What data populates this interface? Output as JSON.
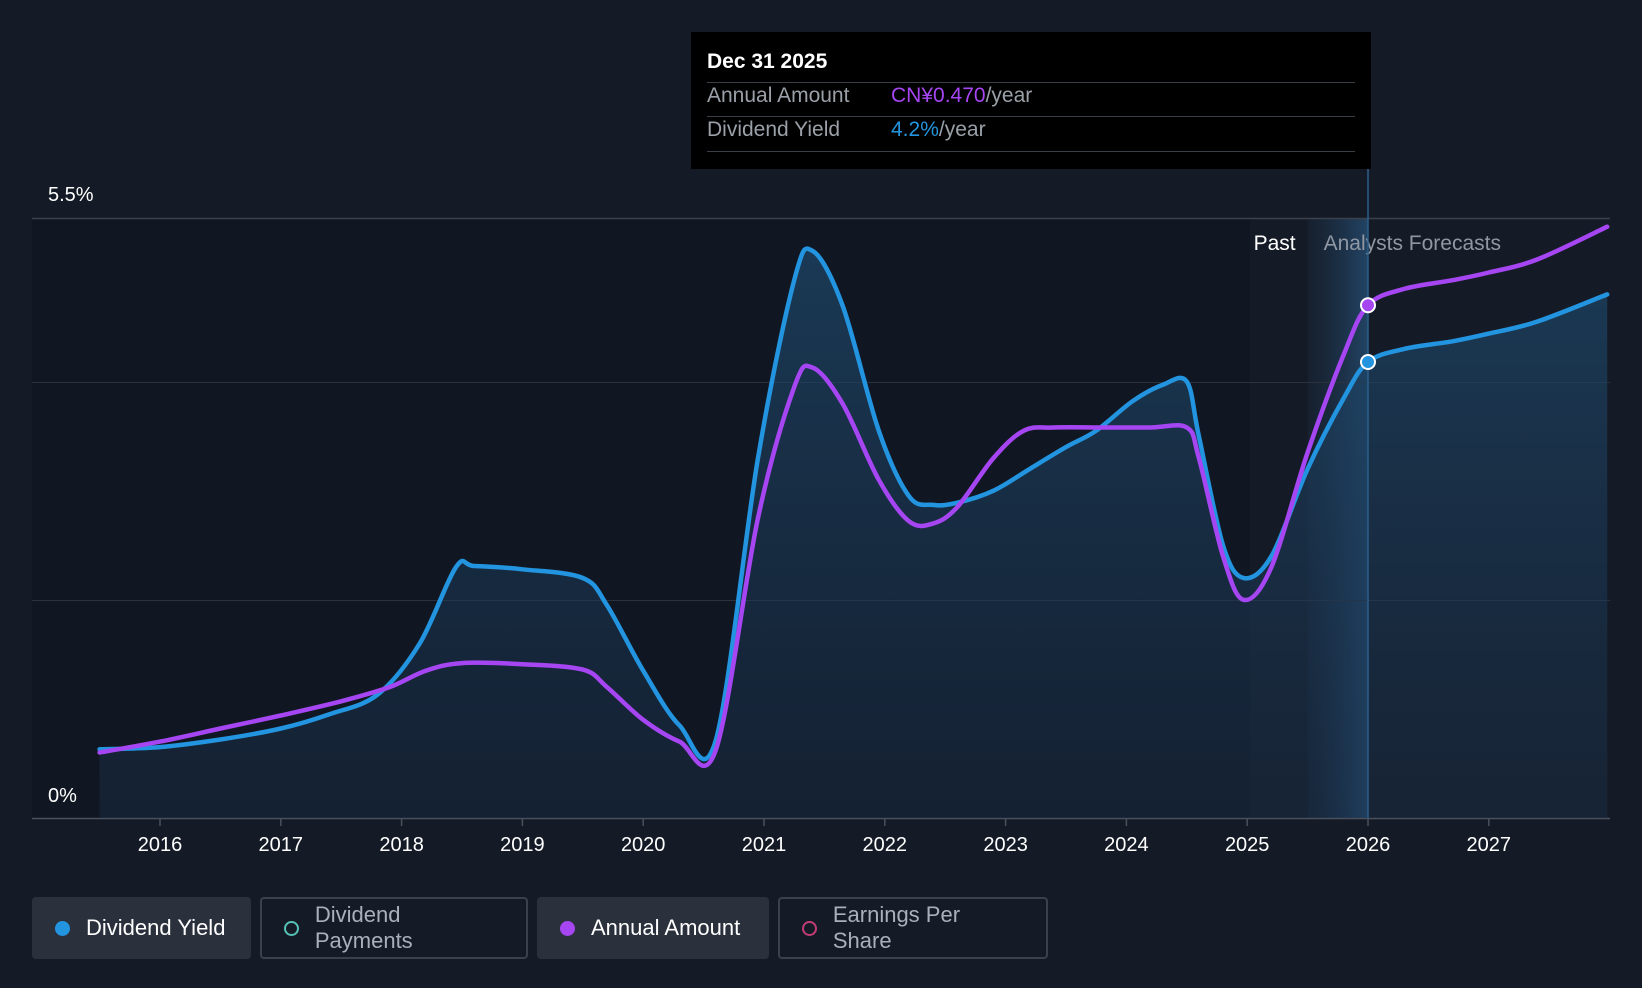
{
  "tooltip": {
    "date": "Dec 31 2025",
    "rows": [
      {
        "label": "Annual Amount",
        "value": "CN¥0.470",
        "unit": "/year",
        "color": "#a646f3"
      },
      {
        "label": "Dividend Yield",
        "value": "4.2%",
        "unit": "/year",
        "color": "#2394df"
      }
    ]
  },
  "legend": [
    {
      "label": "Dividend Yield",
      "state": "active",
      "color": "#2394df"
    },
    {
      "label": "Dividend Payments",
      "state": "inactive",
      "color": "#55c1b6"
    },
    {
      "label": "Annual Amount",
      "state": "active",
      "color": "#a646f3"
    },
    {
      "label": "Earnings Per Share",
      "state": "inactive",
      "color": "#c13d74"
    }
  ],
  "chart_data": {
    "type": "line",
    "y_top_label": "5.5%",
    "y_bottom_label": "0%",
    "ylim": [
      0,
      5.5
    ],
    "xlim": [
      2015.45,
      2027.98
    ],
    "x_ticks": [
      "2016",
      "2017",
      "2018",
      "2019",
      "2020",
      "2021",
      "2022",
      "2023",
      "2024",
      "2025",
      "2026",
      "2027"
    ],
    "past_label": "Past",
    "forecast_label": "Analysts Forecasts",
    "forecast_start": 2025.5,
    "highlight_x": 2026.0,
    "grid": true,
    "series": [
      {
        "name": "Dividend Yield",
        "color": "#2394df",
        "area": true,
        "points": [
          [
            2015.5,
            0.63
          ],
          [
            2016.0,
            0.65
          ],
          [
            2016.5,
            0.72
          ],
          [
            2017.0,
            0.82
          ],
          [
            2017.4,
            0.95
          ],
          [
            2017.8,
            1.13
          ],
          [
            2018.15,
            1.6
          ],
          [
            2018.45,
            2.3
          ],
          [
            2018.6,
            2.31
          ],
          [
            2019.0,
            2.28
          ],
          [
            2019.5,
            2.2
          ],
          [
            2019.7,
            1.95
          ],
          [
            2020.0,
            1.35
          ],
          [
            2020.3,
            0.85
          ],
          [
            2020.6,
            0.71
          ],
          [
            2020.95,
            3.3
          ],
          [
            2021.25,
            4.93
          ],
          [
            2021.4,
            5.2
          ],
          [
            2021.65,
            4.7
          ],
          [
            2021.95,
            3.55
          ],
          [
            2022.2,
            2.95
          ],
          [
            2022.4,
            2.87
          ],
          [
            2022.6,
            2.89
          ],
          [
            2022.9,
            3.0
          ],
          [
            2023.2,
            3.2
          ],
          [
            2023.5,
            3.4
          ],
          [
            2023.75,
            3.55
          ],
          [
            2024.05,
            3.82
          ],
          [
            2024.3,
            3.97
          ],
          [
            2024.5,
            4.0
          ],
          [
            2024.6,
            3.5
          ],
          [
            2024.8,
            2.5
          ],
          [
            2024.97,
            2.2
          ],
          [
            2025.2,
            2.4
          ],
          [
            2025.5,
            3.2
          ],
          [
            2025.8,
            3.85
          ],
          [
            2026.0,
            4.18
          ],
          [
            2026.3,
            4.3
          ],
          [
            2026.7,
            4.37
          ],
          [
            2027.0,
            4.44
          ],
          [
            2027.4,
            4.55
          ],
          [
            2027.98,
            4.8
          ]
        ]
      },
      {
        "name": "Annual Amount",
        "color": "#a646f3",
        "area": false,
        "points": [
          [
            2015.5,
            0.6
          ],
          [
            2016.0,
            0.7
          ],
          [
            2016.5,
            0.82
          ],
          [
            2017.0,
            0.94
          ],
          [
            2017.5,
            1.07
          ],
          [
            2017.9,
            1.2
          ],
          [
            2018.2,
            1.35
          ],
          [
            2018.5,
            1.42
          ],
          [
            2019.0,
            1.41
          ],
          [
            2019.5,
            1.36
          ],
          [
            2019.7,
            1.2
          ],
          [
            2020.0,
            0.9
          ],
          [
            2020.3,
            0.7
          ],
          [
            2020.6,
            0.62
          ],
          [
            2020.95,
            2.75
          ],
          [
            2021.25,
            3.95
          ],
          [
            2021.4,
            4.13
          ],
          [
            2021.65,
            3.8
          ],
          [
            2021.95,
            3.1
          ],
          [
            2022.2,
            2.72
          ],
          [
            2022.4,
            2.7
          ],
          [
            2022.6,
            2.85
          ],
          [
            2022.9,
            3.3
          ],
          [
            2023.15,
            3.55
          ],
          [
            2023.4,
            3.58
          ],
          [
            2023.8,
            3.58
          ],
          [
            2024.2,
            3.58
          ],
          [
            2024.5,
            3.58
          ],
          [
            2024.6,
            3.3
          ],
          [
            2024.8,
            2.4
          ],
          [
            2024.97,
            2.0
          ],
          [
            2025.2,
            2.3
          ],
          [
            2025.5,
            3.35
          ],
          [
            2025.8,
            4.25
          ],
          [
            2026.0,
            4.7
          ],
          [
            2026.3,
            4.85
          ],
          [
            2026.7,
            4.93
          ],
          [
            2027.0,
            5.0
          ],
          [
            2027.4,
            5.12
          ],
          [
            2027.98,
            5.42
          ]
        ]
      }
    ],
    "markers": [
      {
        "series": "Annual Amount",
        "x": 2026.0,
        "y": 4.7
      },
      {
        "series": "Dividend Yield",
        "x": 2026.0,
        "y": 4.18
      }
    ]
  }
}
